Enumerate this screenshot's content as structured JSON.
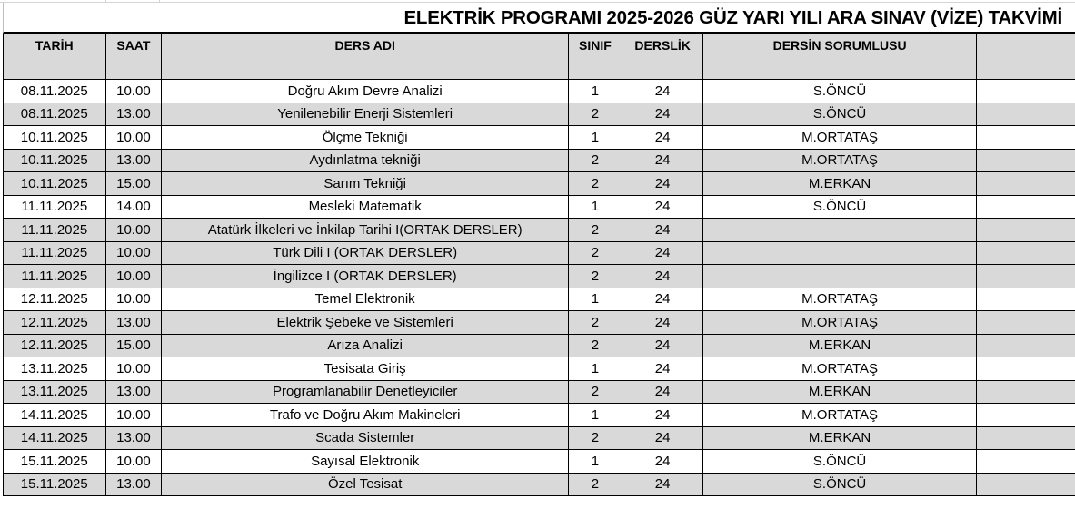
{
  "title": "ELEKTRİK PROGRAMI 2025-2026 GÜZ YARI YILI ARA SINAV (VİZE) TAKVİMİ",
  "columns": [
    "TARİH",
    "SAAT",
    "DERS ADI",
    "SINIF",
    "DERSLİK",
    "DERSİN SORUMLUSU",
    ""
  ],
  "shade_color": "#d9d9d9",
  "rows": [
    {
      "tarih": "08.11.2025",
      "saat": "10.00",
      "ders": "Doğru Akım Devre Analizi",
      "sinif": "1",
      "derslik": "24",
      "sorumlu": "S.ÖNCÜ"
    },
    {
      "tarih": "08.11.2025",
      "saat": "13.00",
      "ders": "Yenilenebilir Enerji Sistemleri",
      "sinif": "2",
      "derslik": "24",
      "sorumlu": "S.ÖNCÜ"
    },
    {
      "tarih": "10.11.2025",
      "saat": "10.00",
      "ders": "Ölçme Tekniği",
      "sinif": "1",
      "derslik": "24",
      "sorumlu": "M.ORTATAŞ"
    },
    {
      "tarih": "10.11.2025",
      "saat": "13.00",
      "ders": "Aydınlatma tekniği",
      "sinif": "2",
      "derslik": "24",
      "sorumlu": "M.ORTATAŞ"
    },
    {
      "tarih": "10.11.2025",
      "saat": "15.00",
      "ders": "Sarım Tekniği",
      "sinif": "2",
      "derslik": "24",
      "sorumlu": "M.ERKAN"
    },
    {
      "tarih": "11.11.2025",
      "saat": "14.00",
      "ders": "Mesleki Matematik",
      "sinif": "1",
      "derslik": "24",
      "sorumlu": "S.ÖNCÜ"
    },
    {
      "tarih": "11.11.2025",
      "saat": "10.00",
      "ders": "Atatürk İlkeleri ve İnkilap Tarihi I(ORTAK DERSLER)",
      "sinif": "2",
      "derslik": "24",
      "sorumlu": ""
    },
    {
      "tarih": "11.11.2025",
      "saat": "10.00",
      "ders": "Türk Dili I (ORTAK DERSLER)",
      "sinif": "2",
      "derslik": "24",
      "sorumlu": ""
    },
    {
      "tarih": "11.11.2025",
      "saat": "10.00",
      "ders": "İngilizce I (ORTAK DERSLER)",
      "sinif": "2",
      "derslik": "24",
      "sorumlu": ""
    },
    {
      "tarih": "12.11.2025",
      "saat": "10.00",
      "ders": "Temel Elektronik",
      "sinif": "1",
      "derslik": "24",
      "sorumlu": "M.ORTATAŞ"
    },
    {
      "tarih": "12.11.2025",
      "saat": "13.00",
      "ders": "Elektrik Şebeke ve Sistemleri",
      "sinif": "2",
      "derslik": "24",
      "sorumlu": "M.ORTATAŞ"
    },
    {
      "tarih": "12.11.2025",
      "saat": "15.00",
      "ders": "Arıza Analizi",
      "sinif": "2",
      "derslik": "24",
      "sorumlu": "M.ERKAN"
    },
    {
      "tarih": "13.11.2025",
      "saat": "10.00",
      "ders": "Tesisata Giriş",
      "sinif": "1",
      "derslik": "24",
      "sorumlu": "M.ORTATAŞ"
    },
    {
      "tarih": "13.11.2025",
      "saat": "13.00",
      "ders": "Programlanabilir Denetleyiciler",
      "sinif": "2",
      "derslik": "24",
      "sorumlu": "M.ERKAN"
    },
    {
      "tarih": "14.11.2025",
      "saat": "10.00",
      "ders": "Trafo ve Doğru Akım Makineleri",
      "sinif": "1",
      "derslik": "24",
      "sorumlu": "M.ORTATAŞ"
    },
    {
      "tarih": "14.11.2025",
      "saat": "13.00",
      "ders": "Scada Sistemler",
      "sinif": "2",
      "derslik": "24",
      "sorumlu": "M.ERKAN"
    },
    {
      "tarih": "15.11.2025",
      "saat": "10.00",
      "ders": "Sayısal Elektronik",
      "sinif": "1",
      "derslik": "24",
      "sorumlu": "S.ÖNCÜ"
    },
    {
      "tarih": "15.11.2025",
      "saat": "13.00",
      "ders": "Özel Tesisat",
      "sinif": "2",
      "derslik": "24",
      "sorumlu": "S.ÖNCÜ"
    }
  ]
}
